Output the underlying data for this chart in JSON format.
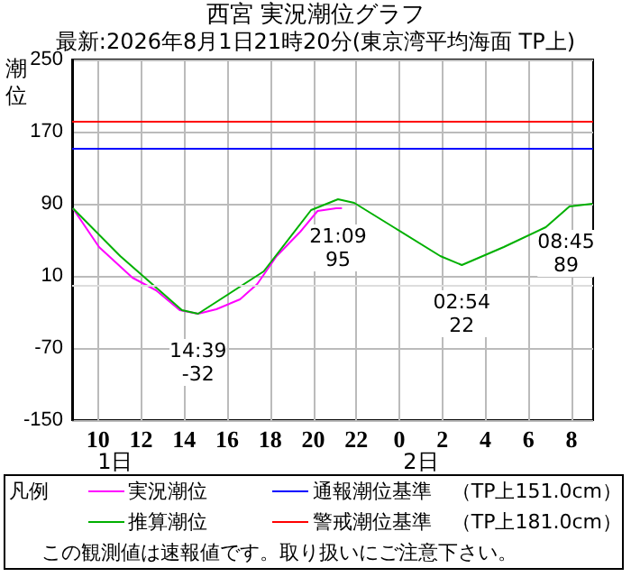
{
  "chart_data": {
    "type": "line",
    "title": "西宮 実況潮位グラフ",
    "subtitle": "最新:2026年8月1日21時20分(東京湾平均海面 TP上)",
    "ylabel": "潮位",
    "legend_title": "凡例",
    "xlim": [
      "2026-08-01T08:48",
      "2026-08-02T09:00"
    ],
    "xticks": [
      {
        "value": "2026-08-01T10:00",
        "label": "10"
      },
      {
        "value": "2026-08-01T12:00",
        "label": "12"
      },
      {
        "value": "2026-08-01T14:00",
        "label": "14"
      },
      {
        "value": "2026-08-01T16:00",
        "label": "16"
      },
      {
        "value": "2026-08-01T18:00",
        "label": "18"
      },
      {
        "value": "2026-08-01T20:00",
        "label": "20"
      },
      {
        "value": "2026-08-01T22:00",
        "label": "22"
      },
      {
        "value": "2026-08-02T00:00",
        "label": "0"
      },
      {
        "value": "2026-08-02T02:00",
        "label": "2"
      },
      {
        "value": "2026-08-02T04:00",
        "label": "4"
      },
      {
        "value": "2026-08-02T06:00",
        "label": "6"
      },
      {
        "value": "2026-08-02T08:00",
        "label": "8"
      }
    ],
    "ylim": [
      -150,
      250
    ],
    "yticks": [
      -150,
      -70,
      10,
      90,
      170,
      250
    ],
    "grid": true,
    "legend": "bottom",
    "marker": "none",
    "series": [
      {
        "name": "実況潮位",
        "color": "#ff00ff",
        "x": [
          "2026-08-01T08:50",
          "2026-08-01T10:03",
          "2026-08-01T11:36",
          "2026-08-01T12:42",
          "2026-08-01T13:48",
          "2026-08-01T14:39",
          "2026-08-01T15:30",
          "2026-08-01T16:36",
          "2026-08-01T17:24",
          "2026-08-01T18:18",
          "2026-08-01T19:24",
          "2026-08-01T20:12",
          "2026-08-01T21:04",
          "2026-08-01T21:20"
        ],
        "values": [
          85,
          42,
          8,
          -6,
          -28,
          -32,
          -27,
          -16,
          1,
          32,
          59,
          82,
          85,
          85
        ]
      },
      {
        "name": "推算潮位",
        "color": "#00b000",
        "x": [
          "2026-08-01T08:50",
          "2026-08-01T11:02",
          "2026-08-01T13:54",
          "2026-08-01T14:39",
          "2026-08-01T17:42",
          "2026-08-01T19:54",
          "2026-08-01T21:09",
          "2026-08-01T21:54",
          "2026-08-01T23:48",
          "2026-08-02T01:54",
          "2026-08-02T02:54",
          "2026-08-02T04:51",
          "2026-08-02T06:48",
          "2026-08-02T07:54",
          "2026-08-02T08:58"
        ],
        "values": [
          85,
          32,
          -28,
          -32,
          15,
          83,
          95,
          91,
          63,
          32,
          22,
          42,
          64,
          87,
          90
        ]
      }
    ],
    "ref_lines": [
      {
        "axis": "y",
        "value": 151,
        "label": "通報潮位基準　（TP上151.0cm）",
        "color": "#0000ff"
      },
      {
        "axis": "y",
        "value": 181,
        "label": "警戒潮位基準　（TP上181.0cm）",
        "color": "#ff0000"
      },
      {
        "axis": "y",
        "value": 0,
        "color": "#dddddd"
      }
    ],
    "annotations": [
      {
        "text": "14:39\n-32",
        "x": "2026-08-01T14:39",
        "y": -32
      },
      {
        "text": "21:09\n95",
        "x": "2026-08-01T21:09",
        "y": 95
      },
      {
        "text": "02:54\n22",
        "x": "2026-08-02T02:54",
        "y": 22
      },
      {
        "text": "08:45\n89",
        "x": "2026-08-02T08:45",
        "y": 89
      },
      "1日",
      "2日",
      "この観測値は速報値です。取り扱いにご注意下さい。"
    ]
  }
}
